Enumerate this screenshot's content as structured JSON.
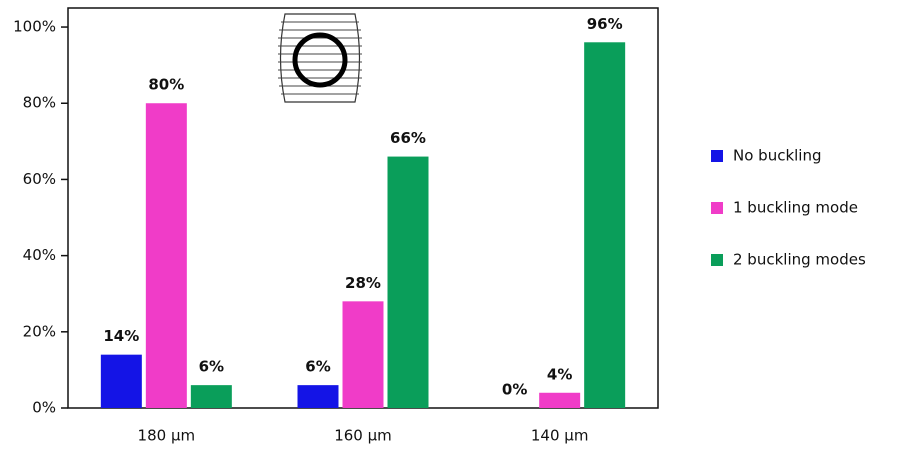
{
  "chart_data": {
    "type": "bar",
    "categories": [
      "180 µm",
      "160 µm",
      "140 µm"
    ],
    "series": [
      {
        "name": "No buckling",
        "color": "#1414e6",
        "values": [
          14,
          6,
          0
        ],
        "value_labels": [
          "14%",
          "6%",
          "0%"
        ]
      },
      {
        "name": "1 buckling mode",
        "color": "#f03cc8",
        "values": [
          80,
          28,
          4
        ],
        "value_labels": [
          "80%",
          "28%",
          "4%"
        ]
      },
      {
        "name": "2 buckling modes",
        "color": "#0a9e5a",
        "values": [
          6,
          66,
          96
        ],
        "value_labels": [
          "6%",
          "66%",
          "96%"
        ]
      }
    ],
    "ylim": [
      0,
      105
    ],
    "yticks": [
      {
        "value": 0,
        "label": "0%"
      },
      {
        "value": 20,
        "label": "20%"
      },
      {
        "value": 40,
        "label": "40%"
      },
      {
        "value": 60,
        "label": "60%"
      },
      {
        "value": 80,
        "label": "80%"
      },
      {
        "value": 100,
        "label": "100%"
      }
    ]
  }
}
